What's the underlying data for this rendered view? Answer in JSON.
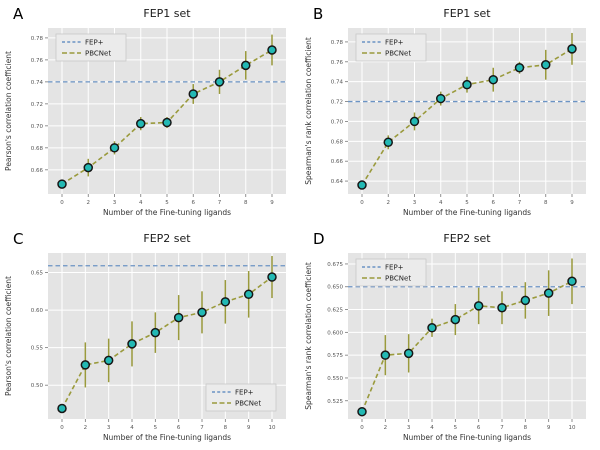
{
  "figure": {
    "colors": {
      "plot_bg": "#e4e4e4",
      "grid": "#ffffff",
      "marker_fill": "#23b9b4",
      "marker_edge": "#161616",
      "pbcnet_line": "#9a9a3c",
      "fep_line": "#6b93c4",
      "tick_text": "#555555",
      "label_text": "#333333",
      "title_text": "#1a1a1a",
      "legend_bg": "#ebebeb",
      "legend_border": "#c8c8c8",
      "tick_mark": "#777777"
    }
  },
  "chart_data": [
    {
      "panel_label": "A",
      "type": "line",
      "title": "FEP1 set",
      "xlabel": "Number of the Fine-tuning ligands",
      "ylabel": "Pearson's correlation coefficient",
      "categories": [
        "0",
        "2",
        "3",
        "4",
        "5",
        "6",
        "7",
        "8",
        "9"
      ],
      "series": [
        {
          "name": "PBCNet",
          "values": [
            0.647,
            0.662,
            0.68,
            0.702,
            0.703,
            0.729,
            0.74,
            0.755,
            0.769
          ],
          "errors": [
            0.002,
            0.008,
            0.006,
            0.006,
            0.005,
            0.009,
            0.011,
            0.013,
            0.014
          ]
        }
      ],
      "reference": {
        "name": "FEP+",
        "value": 0.74
      },
      "ylim": [
        0.638,
        0.789
      ],
      "yticks": [
        0.66,
        0.68,
        0.7,
        0.72,
        0.74,
        0.76,
        0.78
      ],
      "ytick_decimals": 2,
      "legend_position": "top-left",
      "grid": true
    },
    {
      "panel_label": "B",
      "type": "line",
      "title": "FEP1 set",
      "xlabel": "Number of the Fine-tuning ligands",
      "ylabel": "Spearman's rank correlation coefficient",
      "categories": [
        "0",
        "2",
        "3",
        "4",
        "5",
        "6",
        "7",
        "8",
        "9"
      ],
      "series": [
        {
          "name": "PBCNet",
          "values": [
            0.636,
            0.679,
            0.7,
            0.723,
            0.737,
            0.742,
            0.754,
            0.757,
            0.773
          ],
          "errors": [
            0.002,
            0.007,
            0.009,
            0.007,
            0.008,
            0.012,
            0.006,
            0.015,
            0.016
          ]
        }
      ],
      "reference": {
        "name": "FEP+",
        "value": 0.72
      },
      "ylim": [
        0.627,
        0.794
      ],
      "yticks": [
        0.64,
        0.66,
        0.68,
        0.7,
        0.72,
        0.74,
        0.76,
        0.78
      ],
      "ytick_decimals": 2,
      "legend_position": "top-left",
      "grid": true
    },
    {
      "panel_label": "C",
      "type": "line",
      "title": "FEP2 set",
      "xlabel": "Number of the Fine-tuning ligands",
      "ylabel": "Pearson's correlation coefficient",
      "categories": [
        "0",
        "2",
        "3",
        "4",
        "5",
        "6",
        "7",
        "8",
        "9",
        "10"
      ],
      "series": [
        {
          "name": "PBCNet",
          "values": [
            0.469,
            0.527,
            0.533,
            0.555,
            0.57,
            0.59,
            0.597,
            0.611,
            0.621,
            0.644
          ],
          "errors": [
            0.003,
            0.03,
            0.029,
            0.03,
            0.027,
            0.03,
            0.028,
            0.029,
            0.031,
            0.028
          ]
        }
      ],
      "reference": {
        "name": "FEP+",
        "value": 0.659
      },
      "ylim": [
        0.455,
        0.676
      ],
      "yticks": [
        0.5,
        0.55,
        0.6,
        0.65
      ],
      "ytick_decimals": 2,
      "legend_position": "bottom-right",
      "grid": true
    },
    {
      "panel_label": "D",
      "type": "line",
      "title": "FEP2 set",
      "xlabel": "Number of the Fine-tuning ligands",
      "ylabel": "Spearman's rank correlation coefficient",
      "categories": [
        "0",
        "2",
        "3",
        "4",
        "5",
        "6",
        "7",
        "8",
        "9",
        "10"
      ],
      "series": [
        {
          "name": "PBCNet",
          "values": [
            0.513,
            0.575,
            0.577,
            0.605,
            0.614,
            0.629,
            0.627,
            0.635,
            0.643,
            0.656
          ],
          "errors": [
            0.003,
            0.022,
            0.021,
            0.01,
            0.017,
            0.02,
            0.018,
            0.02,
            0.025,
            0.025
          ]
        }
      ],
      "reference": {
        "name": "FEP+",
        "value": 0.65
      },
      "ylim": [
        0.505,
        0.687
      ],
      "yticks": [
        0.525,
        0.55,
        0.575,
        0.6,
        0.625,
        0.65,
        0.675
      ],
      "ytick_decimals": 3,
      "legend_position": "top-left",
      "grid": true
    }
  ]
}
